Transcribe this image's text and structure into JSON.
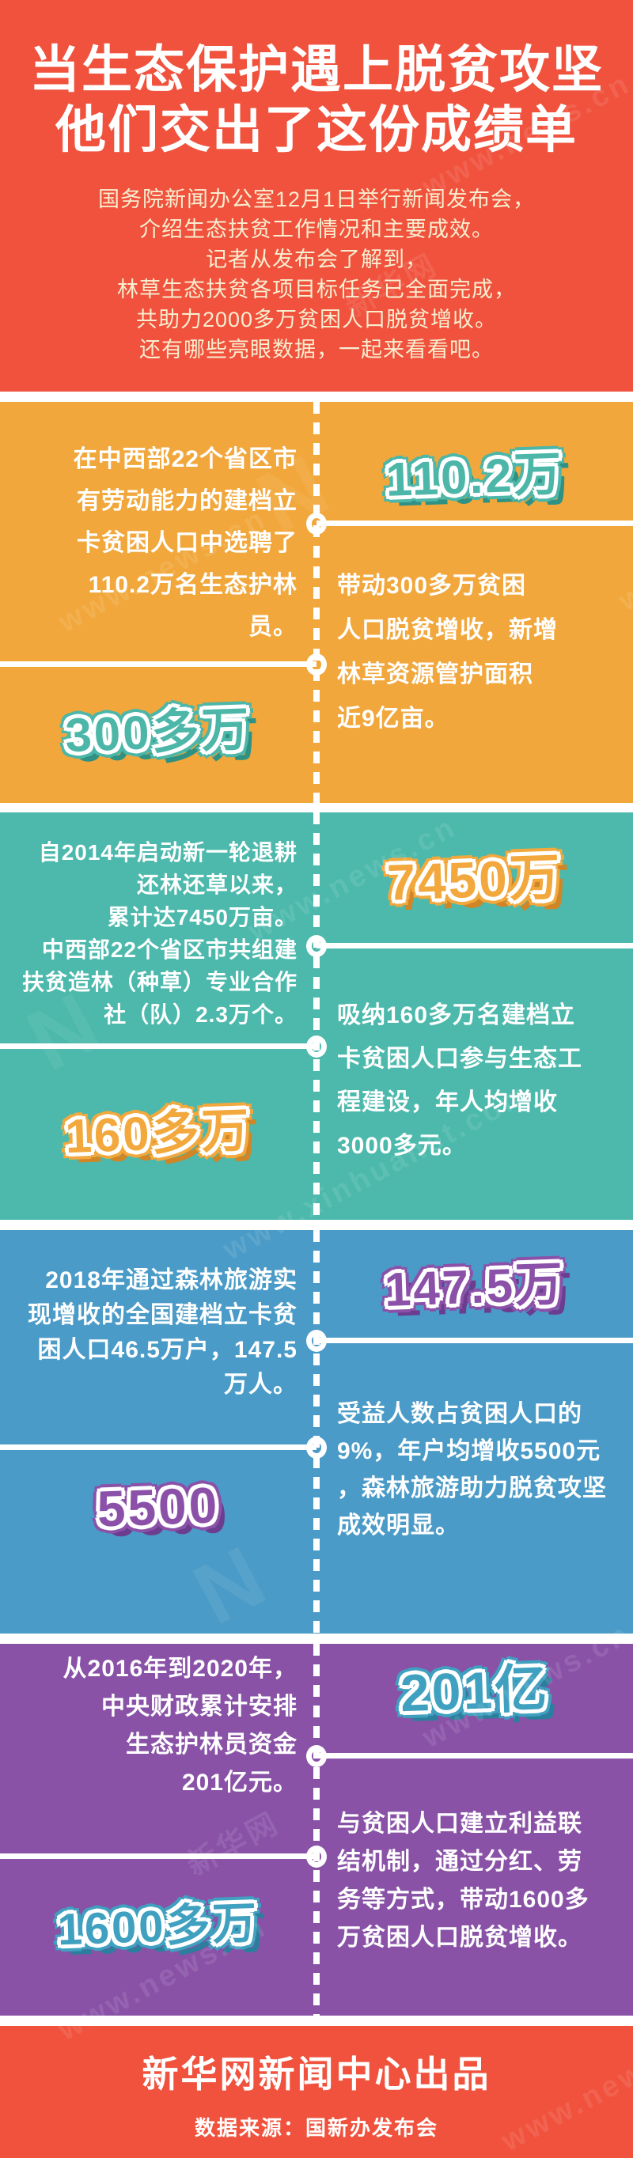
{
  "header": {
    "title_lines": [
      "当生态保护遇上脱贫攻坚",
      "他们交出了这份成绩单"
    ],
    "intro_lines": [
      "国务院新闻办公室12月1日举行新闻发布会，",
      "介绍生态扶贫工作情况和主要成效。",
      "记者从发布会了解到，",
      "林草生态扶贫各项目标任务已全面完成，",
      "共助力2000多万贫困人口脱贫增收。",
      "还有哪些亮眼数据，一起来看看吧。"
    ]
  },
  "colors": {
    "header_red": "#F0523D",
    "intro_cream": "#F8EED0",
    "section1_bg": "#F1A73B",
    "section1_accent": "#4CB6A8",
    "section2_bg": "#4CB9AC",
    "section2_accent": "#F2A83C",
    "section3_bg": "#4A9BC7",
    "section3_accent": "#8B51A8",
    "section4_bg": "#8952A7",
    "section4_accent": "#3FA0BF",
    "text_white": "#FFFFFF"
  },
  "sections": [
    {
      "top_number": "110.2万",
      "bottom_number": "300多万",
      "left_text_lines": [
        "在中西部22个省区市",
        "有劳动能力的建档立",
        "卡贫困人口中选聘了",
        "110.2万名生态护林",
        "员。"
      ],
      "right_text_lines": [
        "带动300多万贫困",
        "人口脱贫增收，新增",
        "林草资源管护面积",
        "近9亿亩。"
      ]
    },
    {
      "top_number": "7450万",
      "bottom_number": "160多万",
      "left_text_lines": [
        "自2014年启动新一轮退耕",
        "还林还草以来，",
        "累计达7450万亩。",
        "中西部22个省区市共组建",
        "扶贫造林（种草）专业合作",
        "社（队）2.3万个。"
      ],
      "right_text_lines": [
        "吸纳160多万名建档立",
        "卡贫困人口参与生态工",
        "程建设，年人均增收",
        "3000多元。"
      ]
    },
    {
      "top_number": "147.5万",
      "bottom_number": "5500",
      "left_text_lines": [
        "2018年通过森林旅游实",
        "现增收的全国建档立卡贫",
        "困人口46.5万户，147.5",
        "万人。"
      ],
      "right_text_lines": [
        "受益人数占贫困人口的",
        "9%，年户均增收5500元",
        "，森林旅游助力脱贫攻坚",
        "成效明显。"
      ]
    },
    {
      "top_number": "201亿",
      "bottom_number": "1600多万",
      "left_text_lines": [
        "从2016年到2020年，",
        "中央财政累计安排",
        "生态护林员资金",
        "201亿元。"
      ],
      "right_text_lines": [
        "与贫困人口建立利益联",
        "结机制，通过分红、劳",
        "务等方式，带动1600多",
        "万贫困人口脱贫增收。"
      ]
    }
  ],
  "footer": {
    "credit": "新华网新闻中心出品",
    "source": "数据来源：国新办发布会"
  },
  "watermark": {
    "url_text": "www.news.cn",
    "brand_text": "新华网",
    "alt_url": "www.xinhuanet.com",
    "logo_text": "N"
  }
}
